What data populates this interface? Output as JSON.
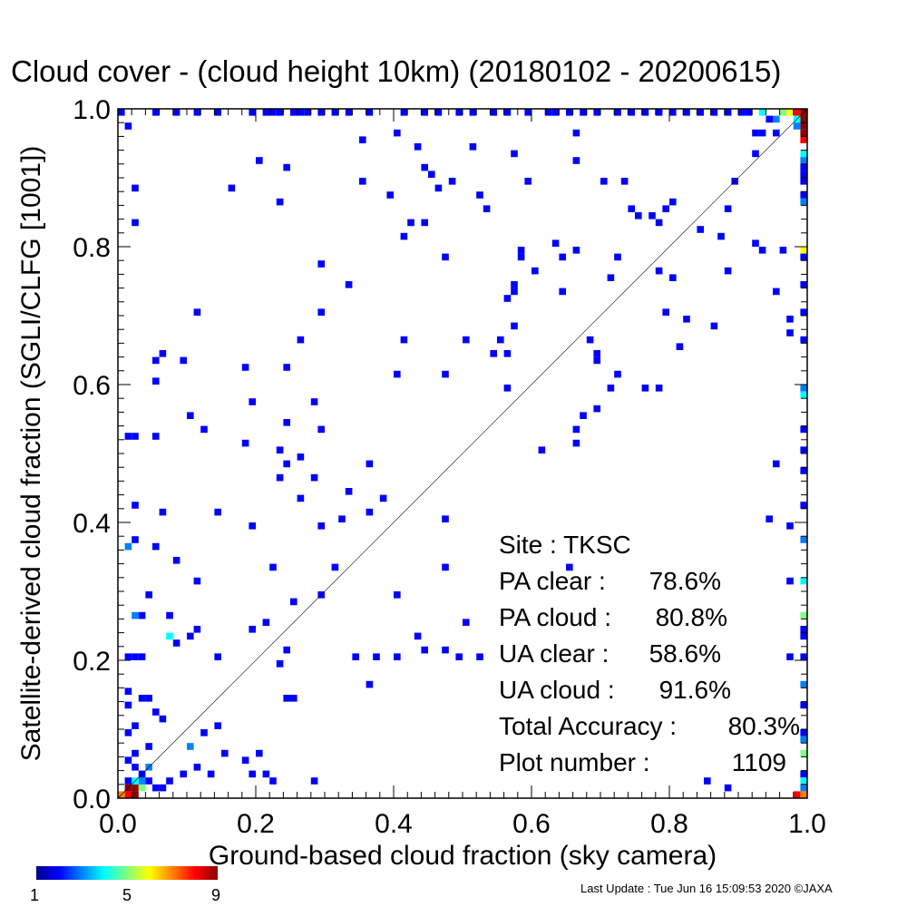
{
  "chart_data": {
    "type": "heatmap",
    "title": "Cloud cover - (cloud height 10km)  (20180102 - 20200615)",
    "xlabel": "Ground-based cloud fraction (sky camera)",
    "ylabel": "Satellite-derived cloud fraction (SGLI/CLFG [1001])",
    "xlim": [
      0.0,
      1.0
    ],
    "ylim": [
      0.0,
      1.0
    ],
    "x_ticks": [
      "0.0",
      "0.2",
      "0.4",
      "0.6",
      "0.8",
      "1.0"
    ],
    "y_ticks": [
      "0.0",
      "0.2",
      "0.4",
      "0.6",
      "0.8",
      "1.0"
    ],
    "grid": false,
    "reference_line": "y = x",
    "cell_size": 0.01,
    "colorbar": {
      "min": 1,
      "max": 9,
      "tick_labels": [
        "1",
        "5",
        "9"
      ],
      "colors": [
        "#00008b",
        "#0000ff",
        "#0080ff",
        "#00ffff",
        "#80ff80",
        "#ffff00",
        "#ff8000",
        "#ff0000",
        "#8b0000"
      ]
    },
    "stats": [
      {
        "label": "Site : TKSC",
        "value": ""
      },
      {
        "label": "PA clear :",
        "value": "78.6%"
      },
      {
        "label": "PA cloud :",
        "value": "80.8%"
      },
      {
        "label": "UA clear :",
        "value": "58.6%"
      },
      {
        "label": "UA cloud :",
        "value": "91.6%"
      },
      {
        "label": "Total Accuracy :",
        "value": "80.3%"
      },
      {
        "label": "Plot number :",
        "value": "1109"
      }
    ],
    "points": [
      [
        0.99,
        0.99,
        9
      ],
      [
        0.99,
        0.98,
        9
      ],
      [
        0.99,
        0.97,
        9
      ],
      [
        0.98,
        0.99,
        8
      ],
      [
        0.97,
        0.99,
        6
      ],
      [
        0.96,
        0.99,
        5
      ],
      [
        0.99,
        0.96,
        9
      ],
      [
        0.99,
        0.95,
        8
      ],
      [
        0.98,
        0.98,
        4
      ],
      [
        0.98,
        0.97,
        3
      ],
      [
        0.99,
        0.93,
        4
      ],
      [
        0.99,
        0.92,
        3
      ],
      [
        0.99,
        0.91,
        2
      ],
      [
        0.99,
        0.9,
        2
      ],
      [
        0.99,
        0.89,
        2
      ],
      [
        0.99,
        0.87,
        2
      ],
      [
        0.99,
        0.86,
        3
      ],
      [
        0.99,
        0.79,
        6
      ],
      [
        0.99,
        0.78,
        2
      ],
      [
        0.99,
        0.74,
        2
      ],
      [
        0.99,
        0.7,
        2
      ],
      [
        0.99,
        0.66,
        2
      ],
      [
        0.99,
        0.59,
        3
      ],
      [
        0.99,
        0.58,
        4
      ],
      [
        0.99,
        0.53,
        2
      ],
      [
        0.99,
        0.5,
        2
      ],
      [
        0.99,
        0.47,
        2
      ],
      [
        0.99,
        0.42,
        2
      ],
      [
        0.99,
        0.37,
        3
      ],
      [
        0.99,
        0.31,
        4
      ],
      [
        0.99,
        0.26,
        5
      ],
      [
        0.99,
        0.24,
        2
      ],
      [
        0.99,
        0.23,
        2
      ],
      [
        0.99,
        0.2,
        2
      ],
      [
        0.99,
        0.16,
        3
      ],
      [
        0.99,
        0.13,
        2
      ],
      [
        0.99,
        0.09,
        2
      ],
      [
        0.99,
        0.08,
        3
      ],
      [
        0.99,
        0.06,
        5
      ],
      [
        0.99,
        0.03,
        2
      ],
      [
        0.99,
        0.02,
        4
      ],
      [
        0.99,
        0.01,
        3
      ],
      [
        0.99,
        0.0,
        7
      ],
      [
        0.98,
        0.0,
        8
      ],
      [
        0.01,
        0.01,
        9
      ],
      [
        0.02,
        0.01,
        9
      ],
      [
        0.01,
        0.0,
        8
      ],
      [
        0.02,
        0.0,
        9
      ],
      [
        0.0,
        0.0,
        7
      ],
      [
        0.02,
        0.02,
        4
      ],
      [
        0.03,
        0.01,
        5
      ],
      [
        0.03,
        0.02,
        3
      ],
      [
        0.01,
        0.02,
        2
      ],
      [
        0.03,
        0.03,
        2
      ],
      [
        0.02,
        0.04,
        2
      ],
      [
        0.01,
        0.05,
        2
      ],
      [
        0.02,
        0.06,
        2
      ],
      [
        0.04,
        0.04,
        3
      ],
      [
        0.04,
        0.02,
        2
      ],
      [
        0.01,
        0.09,
        2
      ],
      [
        0.02,
        0.1,
        2
      ],
      [
        0.01,
        0.13,
        2
      ],
      [
        0.01,
        0.15,
        2
      ],
      [
        0.03,
        0.14,
        2
      ],
      [
        0.04,
        0.14,
        2
      ],
      [
        0.05,
        0.12,
        2
      ],
      [
        0.06,
        0.11,
        2
      ],
      [
        0.01,
        0.2,
        2
      ],
      [
        0.02,
        0.2,
        2
      ],
      [
        0.03,
        0.2,
        2
      ],
      [
        0.02,
        0.26,
        3
      ],
      [
        0.03,
        0.26,
        2
      ],
      [
        0.04,
        0.29,
        2
      ],
      [
        0.01,
        0.36,
        3
      ],
      [
        0.02,
        0.37,
        2
      ],
      [
        0.05,
        0.36,
        2
      ],
      [
        0.02,
        0.42,
        2
      ],
      [
        0.01,
        0.52,
        2
      ],
      [
        0.02,
        0.52,
        2
      ],
      [
        0.05,
        0.52,
        2
      ],
      [
        0.06,
        0.41,
        2
      ],
      [
        0.05,
        0.63,
        2
      ],
      [
        0.06,
        0.64,
        2
      ],
      [
        0.05,
        0.6,
        2
      ],
      [
        0.09,
        0.63,
        2
      ],
      [
        0.11,
        0.7,
        2
      ],
      [
        0.1,
        0.55,
        2
      ],
      [
        0.12,
        0.53,
        2
      ],
      [
        0.14,
        0.41,
        2
      ],
      [
        0.08,
        0.34,
        2
      ],
      [
        0.11,
        0.31,
        2
      ],
      [
        0.07,
        0.26,
        2
      ],
      [
        0.07,
        0.23,
        4
      ],
      [
        0.08,
        0.22,
        2
      ],
      [
        0.1,
        0.23,
        2
      ],
      [
        0.11,
        0.24,
        2
      ],
      [
        0.14,
        0.2,
        2
      ],
      [
        0.14,
        0.1,
        2
      ],
      [
        0.12,
        0.09,
        2
      ],
      [
        0.1,
        0.07,
        3
      ],
      [
        0.11,
        0.04,
        2
      ],
      [
        0.09,
        0.03,
        2
      ],
      [
        0.13,
        0.03,
        2
      ],
      [
        0.15,
        0.06,
        2
      ],
      [
        0.02,
        0.88,
        2
      ],
      [
        0.01,
        0.97,
        2
      ],
      [
        0.02,
        0.83,
        2
      ],
      [
        0.16,
        0.88,
        2
      ],
      [
        0.2,
        0.92,
        2
      ],
      [
        0.24,
        0.91,
        2
      ],
      [
        0.23,
        0.86,
        2
      ],
      [
        0.18,
        0.62,
        2
      ],
      [
        0.24,
        0.62,
        2
      ],
      [
        0.19,
        0.57,
        2
      ],
      [
        0.18,
        0.51,
        2
      ],
      [
        0.24,
        0.54,
        2
      ],
      [
        0.23,
        0.5,
        2
      ],
      [
        0.26,
        0.49,
        2
      ],
      [
        0.24,
        0.48,
        2
      ],
      [
        0.23,
        0.46,
        2
      ],
      [
        0.28,
        0.57,
        2
      ],
      [
        0.29,
        0.53,
        2
      ],
      [
        0.28,
        0.46,
        2
      ],
      [
        0.26,
        0.43,
        2
      ],
      [
        0.19,
        0.39,
        2
      ],
      [
        0.29,
        0.39,
        2
      ],
      [
        0.32,
        0.4,
        2
      ],
      [
        0.36,
        0.41,
        2
      ],
      [
        0.38,
        0.43,
        2
      ],
      [
        0.36,
        0.48,
        2
      ],
      [
        0.33,
        0.44,
        2
      ],
      [
        0.26,
        0.66,
        2
      ],
      [
        0.29,
        0.7,
        2
      ],
      [
        0.29,
        0.77,
        2
      ],
      [
        0.33,
        0.74,
        2
      ],
      [
        0.41,
        0.81,
        2
      ],
      [
        0.42,
        0.83,
        2
      ],
      [
        0.44,
        0.83,
        2
      ],
      [
        0.44,
        0.91,
        2
      ],
      [
        0.45,
        0.9,
        2
      ],
      [
        0.46,
        0.88,
        2
      ],
      [
        0.43,
        0.94,
        2
      ],
      [
        0.4,
        0.96,
        2
      ],
      [
        0.35,
        0.95,
        2
      ],
      [
        0.35,
        0.89,
        2
      ],
      [
        0.39,
        0.87,
        2
      ],
      [
        0.48,
        0.89,
        2
      ],
      [
        0.52,
        0.87,
        2
      ],
      [
        0.53,
        0.85,
        2
      ],
      [
        0.47,
        0.78,
        2
      ],
      [
        0.51,
        0.94,
        2
      ],
      [
        0.57,
        0.93,
        2
      ],
      [
        0.59,
        0.89,
        2
      ],
      [
        0.66,
        0.96,
        2
      ],
      [
        0.66,
        0.92,
        2
      ],
      [
        0.7,
        0.89,
        2
      ],
      [
        0.73,
        0.89,
        2
      ],
      [
        0.74,
        0.85,
        2
      ],
      [
        0.75,
        0.84,
        2
      ],
      [
        0.77,
        0.84,
        2
      ],
      [
        0.79,
        0.85,
        2
      ],
      [
        0.8,
        0.86,
        2
      ],
      [
        0.78,
        0.83,
        2
      ],
      [
        0.84,
        0.82,
        2
      ],
      [
        0.88,
        0.85,
        2
      ],
      [
        0.89,
        0.89,
        2
      ],
      [
        0.87,
        0.81,
        2
      ],
      [
        0.92,
        0.93,
        2
      ],
      [
        0.93,
        0.96,
        2
      ],
      [
        0.94,
        0.98,
        2
      ],
      [
        0.92,
        0.8,
        2
      ],
      [
        0.96,
        0.79,
        2
      ],
      [
        0.93,
        0.79,
        2
      ],
      [
        0.95,
        0.73,
        2
      ],
      [
        0.97,
        0.69,
        2
      ],
      [
        0.97,
        0.67,
        2
      ],
      [
        0.88,
        0.76,
        2
      ],
      [
        0.8,
        0.75,
        2
      ],
      [
        0.86,
        0.68,
        2
      ],
      [
        0.82,
        0.69,
        2
      ],
      [
        0.79,
        0.7,
        2
      ],
      [
        0.81,
        0.65,
        2
      ],
      [
        0.68,
        0.66,
        2
      ],
      [
        0.69,
        0.64,
        2
      ],
      [
        0.64,
        0.73,
        2
      ],
      [
        0.63,
        0.8,
        2
      ],
      [
        0.64,
        0.78,
        2
      ],
      [
        0.66,
        0.79,
        2
      ],
      [
        0.72,
        0.78,
        2
      ],
      [
        0.71,
        0.75,
        2
      ],
      [
        0.78,
        0.76,
        2
      ],
      [
        0.58,
        0.79,
        2
      ],
      [
        0.58,
        0.78,
        2
      ],
      [
        0.6,
        0.76,
        2
      ],
      [
        0.57,
        0.74,
        2
      ],
      [
        0.57,
        0.73,
        2
      ],
      [
        0.56,
        0.72,
        2
      ],
      [
        0.57,
        0.68,
        2
      ],
      [
        0.55,
        0.66,
        2
      ],
      [
        0.56,
        0.64,
        2
      ],
      [
        0.54,
        0.64,
        2
      ],
      [
        0.56,
        0.59,
        2
      ],
      [
        0.47,
        0.61,
        2
      ],
      [
        0.4,
        0.61,
        2
      ],
      [
        0.41,
        0.66,
        2
      ],
      [
        0.5,
        0.66,
        2
      ],
      [
        0.69,
        0.63,
        2
      ],
      [
        0.72,
        0.61,
        2
      ],
      [
        0.71,
        0.59,
        2
      ],
      [
        0.69,
        0.56,
        2
      ],
      [
        0.67,
        0.55,
        2
      ],
      [
        0.66,
        0.53,
        2
      ],
      [
        0.66,
        0.51,
        2
      ],
      [
        0.61,
        0.5,
        2
      ],
      [
        0.76,
        0.59,
        2
      ],
      [
        0.78,
        0.59,
        2
      ],
      [
        0.95,
        0.48,
        2
      ],
      [
        0.94,
        0.4,
        2
      ],
      [
        0.97,
        0.39,
        2
      ],
      [
        0.97,
        0.31,
        2
      ],
      [
        0.65,
        0.33,
        2
      ],
      [
        0.47,
        0.33,
        2
      ],
      [
        0.47,
        0.4,
        2
      ],
      [
        0.4,
        0.29,
        2
      ],
      [
        0.31,
        0.33,
        2
      ],
      [
        0.29,
        0.29,
        2
      ],
      [
        0.25,
        0.28,
        2
      ],
      [
        0.22,
        0.33,
        2
      ],
      [
        0.21,
        0.25,
        2
      ],
      [
        0.19,
        0.24,
        2
      ],
      [
        0.24,
        0.21,
        2
      ],
      [
        0.23,
        0.19,
        2
      ],
      [
        0.24,
        0.14,
        2
      ],
      [
        0.25,
        0.14,
        2
      ],
      [
        0.36,
        0.16,
        2
      ],
      [
        0.34,
        0.2,
        2
      ],
      [
        0.37,
        0.2,
        2
      ],
      [
        0.4,
        0.2,
        2
      ],
      [
        0.43,
        0.23,
        2
      ],
      [
        0.44,
        0.21,
        2
      ],
      [
        0.47,
        0.21,
        2
      ],
      [
        0.49,
        0.2,
        2
      ],
      [
        0.5,
        0.25,
        2
      ],
      [
        0.52,
        0.2,
        2
      ],
      [
        0.97,
        0.2,
        2
      ],
      [
        0.85,
        0.02,
        2
      ],
      [
        0.88,
        0.01,
        2
      ],
      [
        0.2,
        0.06,
        2
      ],
      [
        0.21,
        0.03,
        2
      ],
      [
        0.22,
        0.02,
        2
      ],
      [
        0.19,
        0.03,
        2
      ],
      [
        0.28,
        0.02,
        2
      ],
      [
        0.18,
        0.05,
        2
      ],
      [
        0.06,
        0.01,
        2
      ],
      [
        0.07,
        0.02,
        2
      ],
      [
        0.05,
        0.01,
        2
      ],
      [
        0.04,
        0.07,
        2
      ],
      [
        0.0,
        0.99,
        2
      ],
      [
        0.05,
        0.99,
        2
      ],
      [
        0.08,
        0.99,
        2
      ],
      [
        0.11,
        0.99,
        2
      ],
      [
        0.14,
        0.99,
        2
      ],
      [
        0.19,
        0.99,
        2
      ],
      [
        0.21,
        0.99,
        2
      ],
      [
        0.22,
        0.99,
        2
      ],
      [
        0.23,
        0.99,
        2
      ],
      [
        0.25,
        0.99,
        2
      ],
      [
        0.26,
        0.99,
        2
      ],
      [
        0.27,
        0.99,
        2
      ],
      [
        0.29,
        0.99,
        2
      ],
      [
        0.31,
        0.99,
        2
      ],
      [
        0.33,
        0.99,
        2
      ],
      [
        0.36,
        0.99,
        2
      ],
      [
        0.41,
        0.99,
        2
      ],
      [
        0.44,
        0.99,
        2
      ],
      [
        0.46,
        0.99,
        2
      ],
      [
        0.49,
        0.99,
        2
      ],
      [
        0.51,
        0.99,
        2
      ],
      [
        0.54,
        0.99,
        2
      ],
      [
        0.56,
        0.99,
        2
      ],
      [
        0.59,
        0.99,
        2
      ],
      [
        0.62,
        0.99,
        2
      ],
      [
        0.63,
        0.99,
        2
      ],
      [
        0.65,
        0.99,
        2
      ],
      [
        0.67,
        0.99,
        2
      ],
      [
        0.69,
        0.99,
        2
      ],
      [
        0.72,
        0.99,
        2
      ],
      [
        0.74,
        0.99,
        2
      ],
      [
        0.76,
        0.99,
        2
      ],
      [
        0.78,
        0.99,
        2
      ],
      [
        0.8,
        0.99,
        2
      ],
      [
        0.82,
        0.99,
        2
      ],
      [
        0.84,
        0.99,
        2
      ],
      [
        0.86,
        0.99,
        2
      ],
      [
        0.88,
        0.99,
        2
      ],
      [
        0.9,
        0.99,
        2
      ],
      [
        0.91,
        0.99,
        2
      ],
      [
        0.93,
        0.99,
        4
      ],
      [
        0.92,
        0.96,
        2
      ],
      [
        0.95,
        0.96,
        2
      ],
      [
        0.95,
        0.98,
        3
      ]
    ]
  },
  "footer": {
    "last_update": "Last Update : Tue Jun 16 15:09:53 2020  ©JAXA"
  }
}
